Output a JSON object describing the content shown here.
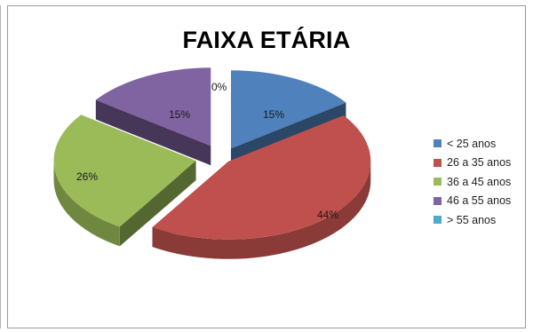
{
  "chart_data": {
    "type": "pie",
    "title": "FAIXA ETÁRIA",
    "categories": [
      "< 25 anos",
      "26 a 35 anos",
      "36 a 45 anos",
      "46 a 55 anos",
      "> 55 anos"
    ],
    "values": [
      15,
      44,
      26,
      15,
      0
    ],
    "value_labels": [
      "15%",
      "44%",
      "26%",
      "15%",
      "0%"
    ],
    "colors": [
      "#4f81bd",
      "#c0504d",
      "#9bbb59",
      "#8064a2",
      "#4bacc6"
    ],
    "style": "3d-exploded",
    "legend_position": "right"
  }
}
